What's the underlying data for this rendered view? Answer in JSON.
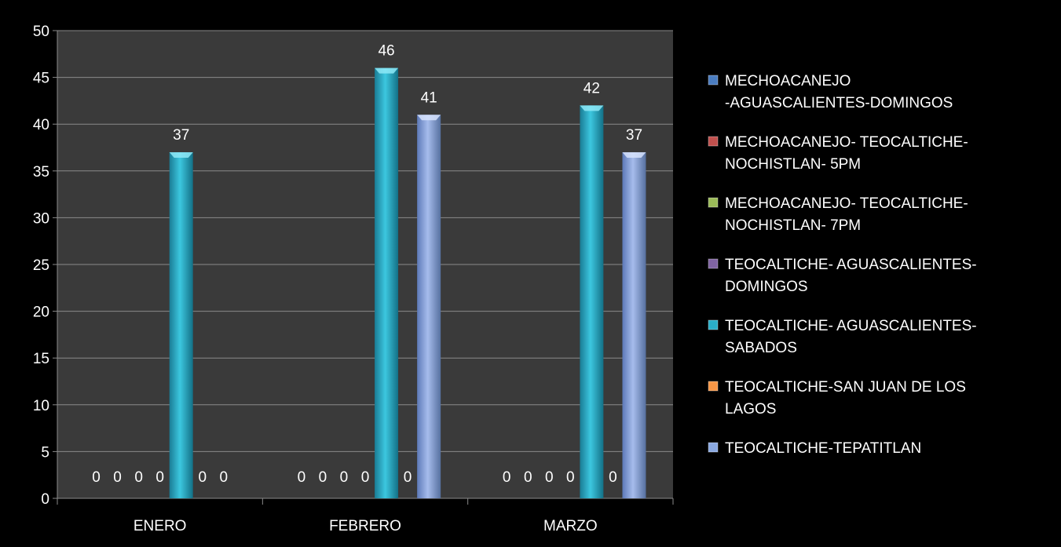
{
  "chart_data": {
    "type": "bar",
    "categories": [
      "ENERO",
      "FEBRERO",
      "MARZO"
    ],
    "ylim": [
      0,
      50
    ],
    "yticks": [
      0,
      5,
      10,
      15,
      20,
      25,
      30,
      35,
      40,
      45,
      50
    ],
    "grid": true,
    "legend_position": "right",
    "data_labels": true,
    "series": [
      {
        "name": "MECHOACANEJO -AGUASCALIENTES-DOMINGOS",
        "values": [
          0,
          0,
          0
        ],
        "color": "#4a7cc0"
      },
      {
        "name": "MECHOACANEJO-TEOCALTICHE-NOCHISTLAN-5PM",
        "values": [
          0,
          0,
          0
        ],
        "color": "#c0504d"
      },
      {
        "name": "MECHOACANEJO-TEOCALTICHE-NOCHISTLAN-7PM",
        "values": [
          0,
          0,
          0
        ],
        "color": "#9bbb59"
      },
      {
        "name": "TEOCALTICHE-AGUASCALIENTES-DOMINGOS",
        "values": [
          0,
          0,
          0
        ],
        "color": "#8064a2"
      },
      {
        "name": "TEOCALTICHE-AGUASCALIENTES-SABADOS",
        "values": [
          37,
          46,
          42
        ],
        "color": "#2aaec8"
      },
      {
        "name": "TEOCALTICHE-SAN JUAN DE LOS LAGOS",
        "values": [
          0,
          0,
          0
        ],
        "color": "#f79646"
      },
      {
        "name": "TEOCALTICHE-TEPATITLAN",
        "values": [
          0,
          41,
          37
        ],
        "color": "#8aa8e0"
      }
    ]
  },
  "colors": {
    "background": "#000000",
    "plot_area": "#3a3a3a",
    "grid": "#8a8a8a",
    "text": "#ffffff"
  }
}
